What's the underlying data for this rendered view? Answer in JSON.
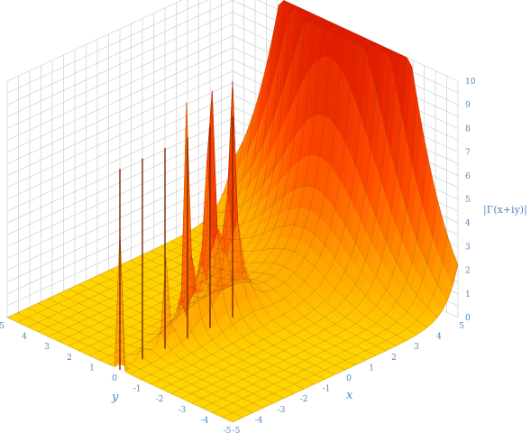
{
  "chart_data": {
    "type": "surface",
    "function": "|Γ(x+iy)|",
    "title": "",
    "xlabel": "x",
    "ylabel": "y",
    "zlabel": "|Γ(x+iy)|",
    "xlim": [
      -5,
      5
    ],
    "ylim": [
      -5,
      5
    ],
    "zlim": [
      0,
      10
    ],
    "x_ticks": [
      -5,
      -4,
      -3,
      -2,
      -1,
      0,
      1,
      2,
      3,
      4,
      5
    ],
    "y_ticks": [
      -5,
      -4,
      -3,
      -2,
      -1,
      0,
      1,
      2,
      3,
      4,
      5
    ],
    "z_ticks": [
      0,
      1,
      2,
      3,
      4,
      5,
      6,
      7,
      8,
      9,
      10
    ],
    "poles": [
      {
        "x": 0,
        "y": 0
      },
      {
        "x": -1,
        "y": 0
      },
      {
        "x": -2,
        "y": 0
      },
      {
        "x": -3,
        "y": 0
      },
      {
        "x": -4,
        "y": 0
      },
      {
        "x": -5,
        "y": 0
      }
    ],
    "grid": true,
    "colormap": [
      "#ffd400",
      "#ffa200",
      "#ff4a00",
      "#e01a00"
    ]
  }
}
